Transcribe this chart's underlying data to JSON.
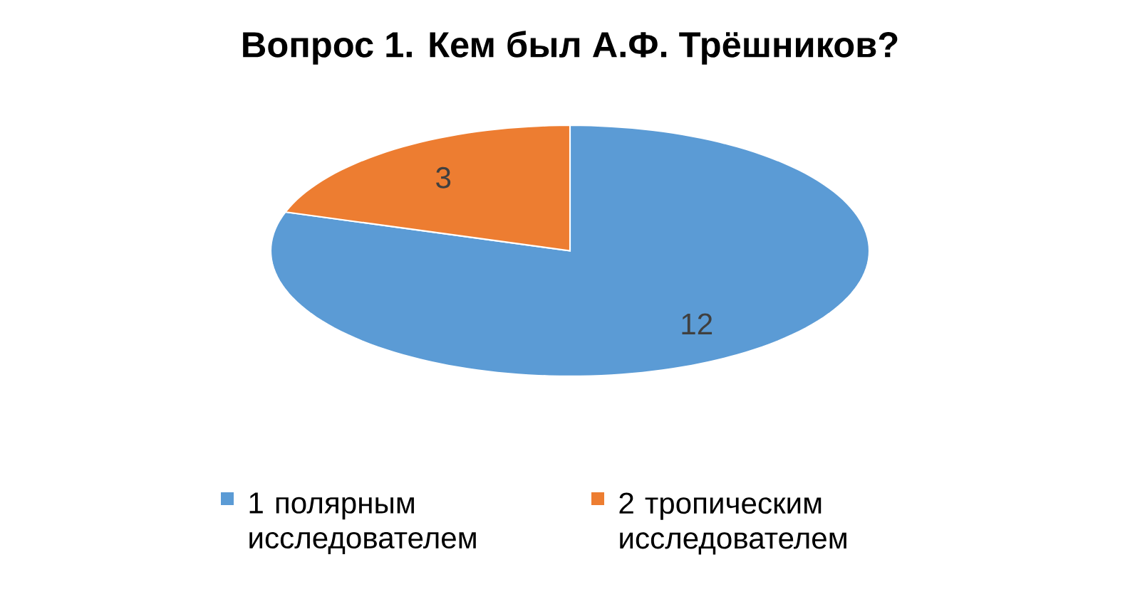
{
  "chart_data": {
    "type": "pie",
    "title": "Вопрос 1. Кем был А.Ф. Трёшников?",
    "categories": [
      "1 полярным исследователем",
      "2 тропическим исследователем"
    ],
    "values": [
      12,
      3
    ],
    "colors": [
      "#5b9bd5",
      "#ed7d31"
    ],
    "data_labels": true,
    "legend": "bottom"
  }
}
